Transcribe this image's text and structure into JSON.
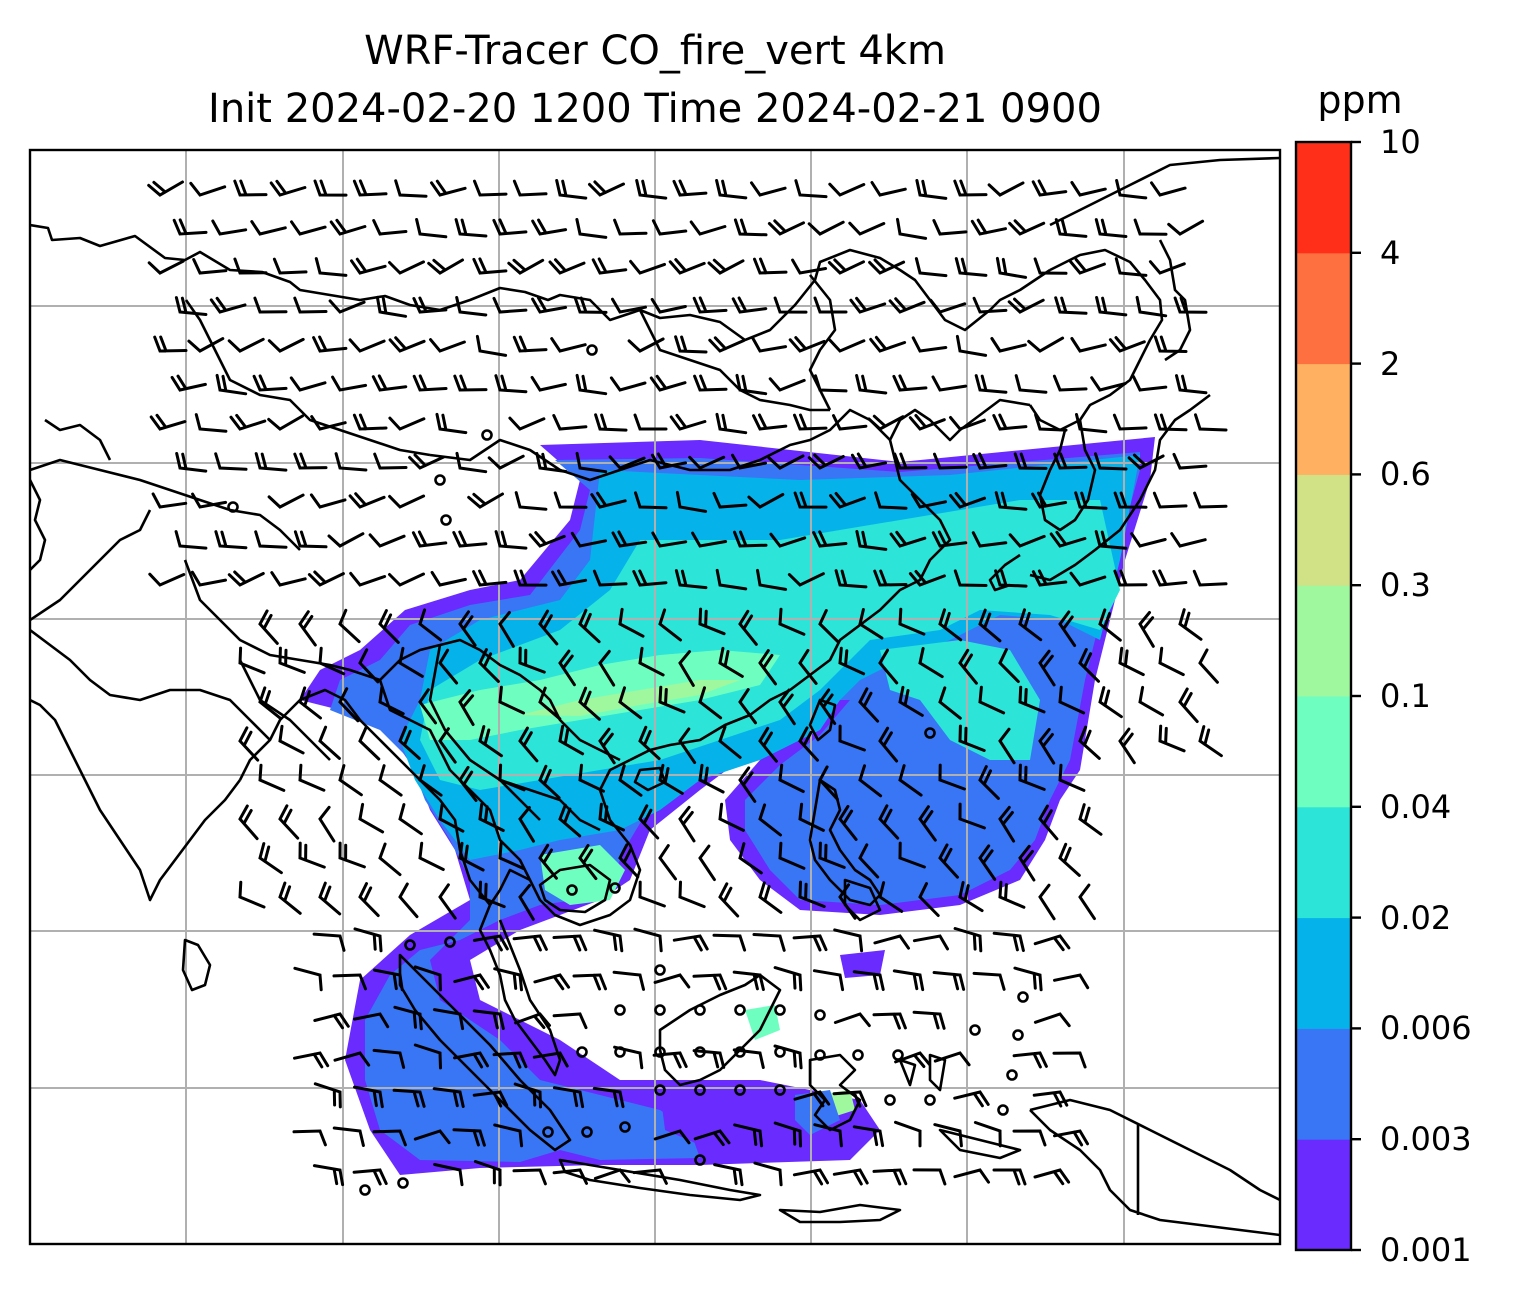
{
  "title_line1": "WRF-Tracer CO_fire_vert 4km",
  "title_line2": "Init 2024-02-20 1200 Time 2024-02-21 0900",
  "colorbar": {
    "unit": "ppm",
    "levels": [
      "0.001",
      "0.003",
      "0.006",
      "0.02",
      "0.04",
      "0.1",
      "0.3",
      "0.6",
      "2",
      "4",
      "10"
    ],
    "colors": [
      "#6a2bff",
      "#3876f5",
      "#06b2ea",
      "#2ce4d8",
      "#6effc0",
      "#9ff79e",
      "#d1e286",
      "#ffb060",
      "#ff7040",
      "#ff2f1a"
    ]
  },
  "map": {
    "grid": true,
    "features": [
      "coastlines",
      "country borders",
      "wind barbs",
      "fire CO tracer shading"
    ]
  }
}
